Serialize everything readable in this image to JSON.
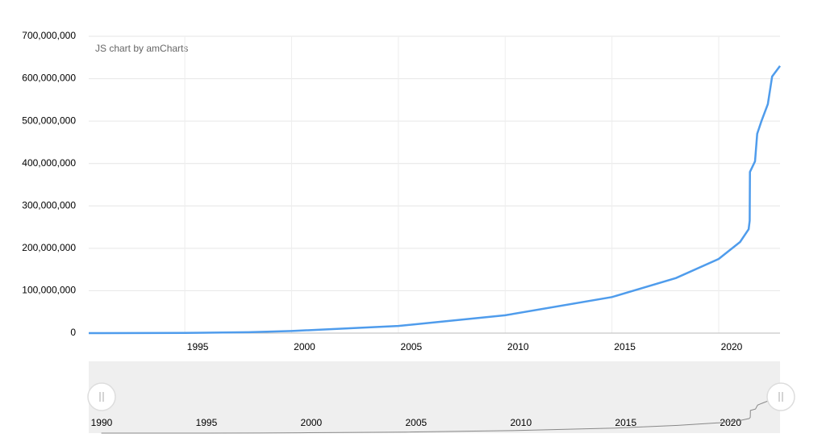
{
  "chart_data": {
    "type": "line",
    "credit": "JS chart by amCharts",
    "x": [
      1990.5,
      1995,
      1998,
      2000,
      2005,
      2010,
      2015,
      2018,
      2020,
      2021,
      2021.4,
      2021.45,
      2021.46,
      2021.7,
      2021.8,
      2022.0,
      2022.3,
      2022.5,
      2022.87
    ],
    "values": [
      0,
      500000,
      2000000,
      5000000,
      17000000,
      42000000,
      85000000,
      130000000,
      175000000,
      215000000,
      245000000,
      265000000,
      380000000,
      405000000,
      470000000,
      500000000,
      540000000,
      605000000,
      630000000
    ],
    "color": "#4f9cec",
    "xlim": [
      1990.5,
      2022.87
    ],
    "xticks": [
      1995,
      2000,
      2005,
      2010,
      2015,
      2020
    ],
    "ylim": [
      0,
      700000000
    ],
    "yticks": [
      0,
      {
        "value": 100000000,
        "label": "100,000,000"
      },
      {
        "value": 200000000,
        "label": "200,000,000"
      },
      {
        "value": 300000000,
        "label": "300,000,000"
      },
      {
        "value": 400000000,
        "label": "400,000,000"
      },
      {
        "value": 500000000,
        "label": "500,000,000"
      },
      {
        "value": 600000000,
        "label": "600,000,000"
      },
      {
        "value": 700000000,
        "label": "700,000,000"
      }
    ],
    "grid": true,
    "scrollbar": {
      "xlim": [
        1989.9,
        2022.87
      ],
      "xticks": [
        1990,
        1995,
        2000,
        2005,
        2010,
        2015,
        2020
      ],
      "color": "#888888"
    }
  }
}
